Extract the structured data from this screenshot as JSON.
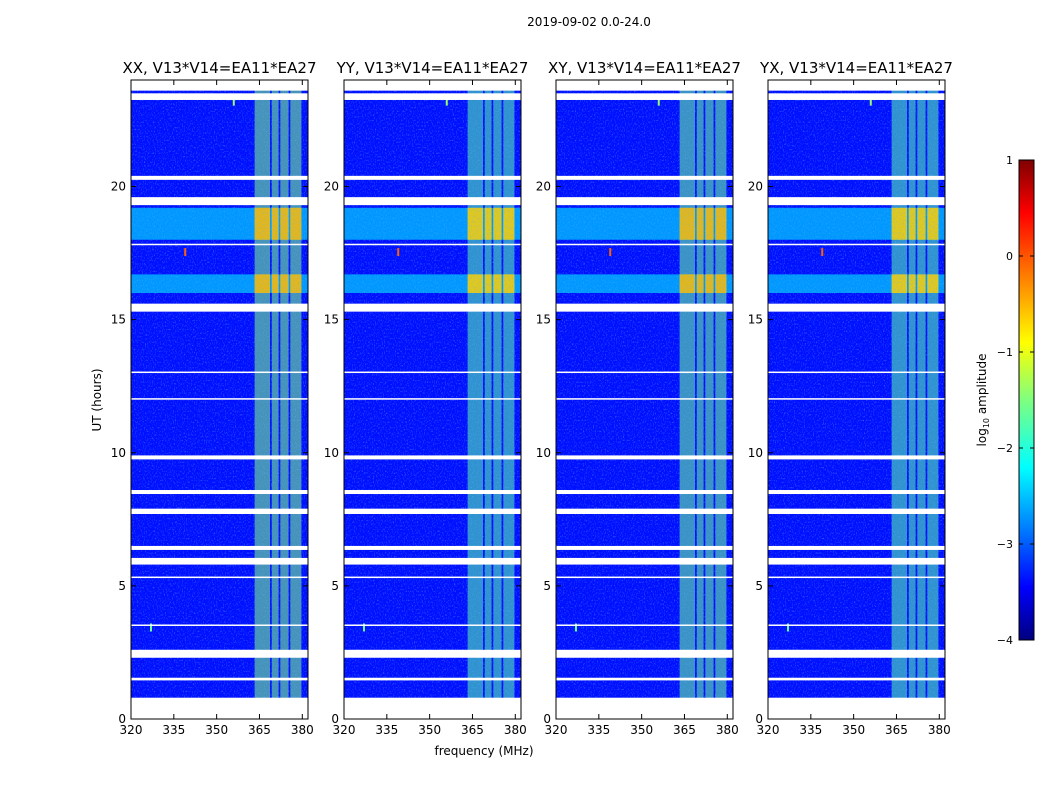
{
  "figure": {
    "suptitle": "2019-09-02 0.0-24.0",
    "xlabel": "frequency (MHz)",
    "ylabel": "UT (hours)"
  },
  "colorbar": {
    "label": "log",
    "label_sub": "10",
    "label_rest": " amplitude",
    "ticks": [
      1,
      0,
      -1,
      -2,
      -3,
      -4
    ],
    "tick_labels": [
      "1",
      "0",
      "−1",
      "−2",
      "−3",
      "−4"
    ],
    "range": [
      -4,
      1
    ],
    "colormap": "jet"
  },
  "chart_data": {
    "type": "heatmap",
    "title": "2019-09-02 0.0-24.0",
    "xlim": [
      320,
      382
    ],
    "ylim": [
      0,
      24
    ],
    "x_ticks": [
      320,
      335,
      350,
      365,
      380
    ],
    "x_tick_labels": [
      "320",
      "335",
      "350",
      "365",
      "380"
    ],
    "y_ticks": [
      0,
      5,
      10,
      15,
      20
    ],
    "y_tick_labels": [
      "0",
      "5",
      "10",
      "15",
      "20"
    ],
    "xlabel": "frequency (MHz)",
    "ylabel": "UT (hours)",
    "value_label": "log10 amplitude",
    "color_range": [
      -4,
      1
    ],
    "background_level": -3.3,
    "panels": [
      {
        "title": "XX, V13*V14=EA11*EA27",
        "polarization": "XX",
        "rfi_level": -1.5,
        "peak_level": -0.5
      },
      {
        "title": "YY, V13*V14=EA11*EA27",
        "polarization": "YY",
        "rfi_level": -1.7,
        "peak_level": -0.6
      },
      {
        "title": "XY, V13*V14=EA11*EA27",
        "polarization": "XY",
        "rfi_level": -1.6,
        "peak_level": -0.5
      },
      {
        "title": "YX, V13*V14=EA11*EA27",
        "polarization": "YX",
        "rfi_level": -1.7,
        "peak_level": -0.6
      }
    ],
    "rfi_band_mhz": [
      363,
      380
    ],
    "rfi_channel_gaps_mhz": [
      369,
      372,
      375.5,
      379.5
    ],
    "flagged_hours": [
      [
        0.0,
        0.8
      ],
      [
        1.45,
        1.55
      ],
      [
        2.3,
        2.6
      ],
      [
        3.5,
        3.55
      ],
      [
        5.3,
        5.35
      ],
      [
        5.8,
        6.05
      ],
      [
        6.35,
        6.5
      ],
      [
        7.7,
        7.9
      ],
      [
        8.45,
        8.6
      ],
      [
        9.75,
        9.9
      ],
      [
        12.0,
        12.05
      ],
      [
        13.0,
        13.05
      ],
      [
        15.3,
        15.6
      ],
      [
        17.8,
        17.85
      ],
      [
        19.3,
        19.6
      ],
      [
        20.25,
        20.4
      ],
      [
        23.25,
        23.5
      ],
      [
        23.6,
        24.0
      ]
    ],
    "bright_rows_hours": [
      [
        16.0,
        16.7
      ],
      [
        18.0,
        19.2
      ]
    ],
    "spike_features": [
      {
        "freq_mhz": 356,
        "hour": 23.15,
        "level": -1.4
      },
      {
        "freq_mhz": 339,
        "hour": 17.5,
        "level": -0.1
      },
      {
        "freq_mhz": 327,
        "hour": 3.4,
        "level": -1.6
      }
    ]
  }
}
